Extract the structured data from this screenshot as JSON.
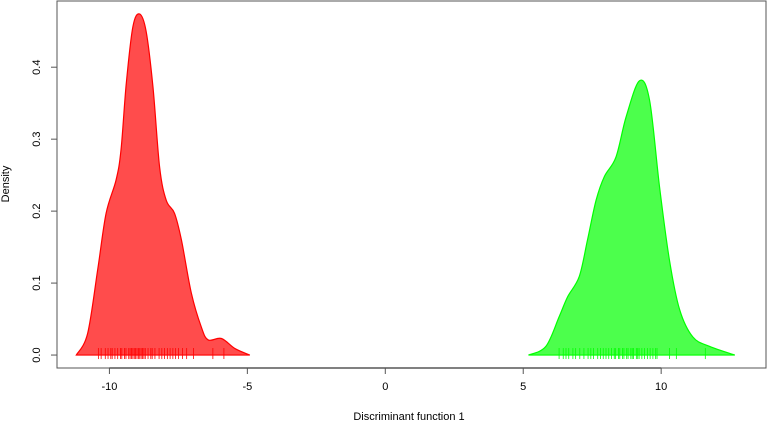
{
  "chart_data": {
    "type": "area",
    "title": "",
    "xlabel": "Discriminant function 1",
    "ylabel": "Density",
    "xlim": [
      -11.9,
      13.8
    ],
    "ylim": [
      -0.018,
      0.492
    ],
    "x_ticks": [
      -10,
      -5,
      0,
      5,
      10
    ],
    "x_tick_labels": [
      "-10",
      "-5",
      "0",
      "5",
      "10"
    ],
    "y_ticks": [
      0.0,
      0.1,
      0.2,
      0.3,
      0.4
    ],
    "y_tick_labels": [
      "0.0",
      "0.1",
      "0.2",
      "0.3",
      "0.4"
    ],
    "grid": false,
    "series": [
      {
        "color": "#ff0000",
        "fill": "#ff4c4c",
        "x": [
          -11.2,
          -10.79,
          -10.42,
          -10.12,
          -9.76,
          -9.58,
          -9.39,
          -9.15,
          -8.91,
          -8.67,
          -8.42,
          -8.18,
          -7.94,
          -7.64,
          -7.39,
          -7.03,
          -6.67,
          -6.42,
          -5.94,
          -5.45,
          -4.91
        ],
        "y": [
          0,
          0.03,
          0.12,
          0.197,
          0.243,
          0.285,
          0.377,
          0.456,
          0.474,
          0.45,
          0.372,
          0.261,
          0.215,
          0.197,
          0.16,
          0.086,
          0.039,
          0.021,
          0.023,
          0.009,
          0
        ],
        "rug": [
          -10.4,
          -10.3,
          -10.15,
          -10.05,
          -9.95,
          -9.9,
          -9.8,
          -9.7,
          -9.6,
          -9.55,
          -9.45,
          -9.4,
          -9.3,
          -9.25,
          -9.2,
          -9.15,
          -9.1,
          -9.05,
          -9.0,
          -8.95,
          -8.9,
          -8.85,
          -8.8,
          -8.75,
          -8.7,
          -8.6,
          -8.5,
          -8.45,
          -8.35,
          -8.2,
          -8.1,
          -8.0,
          -7.9,
          -7.8,
          -7.7,
          -7.6,
          -7.5,
          -7.35,
          -7.2,
          -6.95,
          -6.25,
          -5.85
        ]
      },
      {
        "color": "#00ff00",
        "fill": "#4cff4c",
        "x": [
          5.19,
          5.82,
          6.3,
          6.61,
          7.03,
          7.33,
          7.64,
          7.94,
          8.36,
          8.73,
          9.21,
          9.58,
          9.94,
          10.3,
          10.67,
          11.15,
          11.76,
          12.67
        ],
        "y": [
          0,
          0.012,
          0.053,
          0.081,
          0.109,
          0.16,
          0.215,
          0.248,
          0.275,
          0.331,
          0.381,
          0.354,
          0.234,
          0.132,
          0.063,
          0.025,
          0.012,
          0
        ],
        "rug": [
          6.3,
          6.45,
          6.55,
          6.65,
          6.8,
          6.9,
          7.05,
          7.2,
          7.35,
          7.45,
          7.55,
          7.7,
          7.8,
          7.9,
          8.0,
          8.1,
          8.2,
          8.3,
          8.35,
          8.45,
          8.5,
          8.6,
          8.65,
          8.75,
          8.8,
          8.9,
          8.95,
          9.0,
          9.1,
          9.15,
          9.2,
          9.3,
          9.4,
          9.5,
          9.6,
          9.7,
          9.8,
          9.85,
          10.3,
          10.55,
          11.6
        ]
      }
    ]
  }
}
